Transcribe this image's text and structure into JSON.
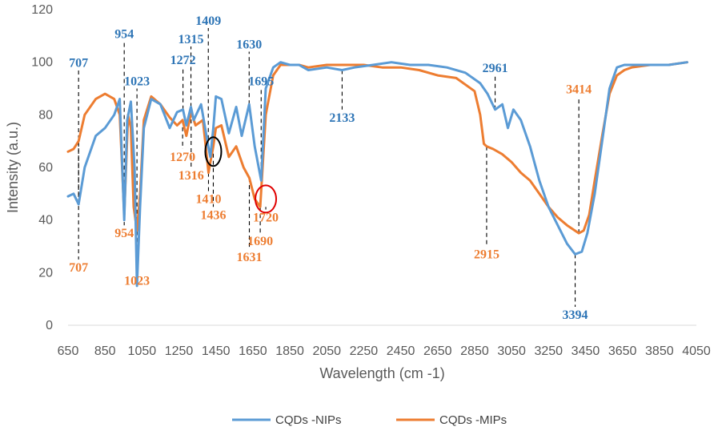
{
  "chart_data": {
    "type": "line",
    "xlabel": "Wavelength (cm -1)",
    "ylabel": "Intensity (a.u.)",
    "xlim": [
      650,
      4050
    ],
    "ylim": [
      0,
      120
    ],
    "grid": false,
    "legend_position": "bottom",
    "x_ticks": [
      650,
      850,
      1050,
      1250,
      1450,
      1650,
      1850,
      2050,
      2250,
      2450,
      2650,
      2850,
      3050,
      3250,
      3450,
      3650,
      3850,
      4050
    ],
    "x_tick_labels": [
      "650",
      "850",
      "1050",
      "1250",
      "1450",
      "1650",
      "1850",
      "2050",
      "2250",
      "2450",
      "2650",
      "2850",
      "3050",
      "3250",
      "3450",
      "3650",
      "3850",
      "4050"
    ],
    "y_ticks": [
      0,
      20,
      40,
      60,
      80,
      100,
      120
    ],
    "y_tick_labels": [
      "0",
      "20",
      "40",
      "60",
      "80",
      "100",
      "120"
    ],
    "colors": {
      "nips": "#5B9BD5",
      "mips": "#ED7D31",
      "nips_label": "#2E75B6",
      "mips_label": "#ED7D31"
    },
    "series": [
      {
        "name": "CQDs -NIPs",
        "x": [
          650,
          680,
          707,
          740,
          800,
          850,
          900,
          930,
          954,
          970,
          990,
          1010,
          1023,
          1040,
          1060,
          1100,
          1150,
          1200,
          1240,
          1272,
          1290,
          1315,
          1330,
          1370,
          1409,
          1420,
          1436,
          1450,
          1480,
          1520,
          1560,
          1590,
          1630,
          1660,
          1695,
          1720,
          1760,
          1800,
          1850,
          1900,
          1950,
          2050,
          2133,
          2200,
          2300,
          2400,
          2500,
          2600,
          2700,
          2800,
          2880,
          2920,
          2961,
          3000,
          3030,
          3060,
          3100,
          3150,
          3200,
          3250,
          3300,
          3350,
          3394,
          3430,
          3460,
          3500,
          3540,
          3580,
          3620,
          3660,
          3700,
          3800,
          3900,
          4000
        ],
        "values": [
          49,
          50,
          46,
          60,
          72,
          75,
          80,
          86,
          40,
          78,
          85,
          60,
          15,
          45,
          75,
          86,
          84,
          75,
          81,
          82,
          76,
          83,
          78,
          84,
          68,
          64,
          75,
          87,
          86,
          73,
          83,
          72,
          84,
          68,
          55,
          90,
          98,
          100,
          99,
          99,
          97,
          98,
          97,
          98,
          99,
          100,
          99,
          99,
          98,
          96,
          92,
          88,
          82,
          84,
          75,
          82,
          78,
          68,
          55,
          45,
          38,
          31,
          27,
          28,
          35,
          50,
          70,
          90,
          98,
          99,
          99,
          99,
          99,
          100
        ]
      },
      {
        "name": "CQDs -MIPs",
        "x": [
          650,
          680,
          707,
          740,
          800,
          850,
          900,
          930,
          954,
          975,
          990,
          1005,
          1023,
          1040,
          1060,
          1100,
          1150,
          1200,
          1240,
          1270,
          1290,
          1316,
          1340,
          1380,
          1410,
          1420,
          1436,
          1450,
          1480,
          1520,
          1560,
          1600,
          1631,
          1660,
          1690,
          1720,
          1760,
          1800,
          1850,
          1900,
          1950,
          2050,
          2150,
          2250,
          2350,
          2450,
          2550,
          2650,
          2750,
          2850,
          2880,
          2900,
          2915,
          2950,
          3000,
          3050,
          3100,
          3150,
          3200,
          3250,
          3300,
          3350,
          3414,
          3440,
          3470,
          3500,
          3540,
          3580,
          3620,
          3660,
          3700,
          3800,
          3900,
          4000
        ],
        "values": [
          66,
          67,
          70,
          80,
          86,
          88,
          86,
          80,
          42,
          80,
          75,
          45,
          36,
          50,
          78,
          87,
          84,
          79,
          76,
          78,
          72,
          81,
          76,
          78,
          58,
          62,
          68,
          75,
          76,
          64,
          68,
          60,
          56,
          48,
          45,
          80,
          95,
          99,
          99,
          99,
          98,
          99,
          99,
          99,
          98,
          98,
          97,
          95,
          94,
          89,
          80,
          69,
          68,
          67,
          65,
          62,
          58,
          55,
          50,
          45,
          41,
          38,
          35,
          36,
          42,
          55,
          72,
          88,
          95,
          97,
          98,
          99,
          99,
          100
        ]
      }
    ],
    "annotations": [
      {
        "text": "707",
        "series": "nips",
        "x": 707,
        "y_from": 46,
        "y_to": 97
      },
      {
        "text": "954",
        "series": "nips",
        "x": 954,
        "y_from": 40,
        "y_to": 108
      },
      {
        "text": "1023",
        "series": "nips",
        "x": 1023,
        "y_from": 15,
        "y_to": 90
      },
      {
        "text": "1272",
        "series": "nips",
        "x": 1272,
        "y_from": 82,
        "y_to": 98
      },
      {
        "text": "1315",
        "series": "nips",
        "x": 1315,
        "y_from": 83,
        "y_to": 106
      },
      {
        "text": "1409",
        "series": "nips",
        "x": 1409,
        "y_from": 68,
        "y_to": 113
      },
      {
        "text": "1630",
        "series": "nips",
        "x": 1630,
        "y_from": 84,
        "y_to": 104
      },
      {
        "text": "1695",
        "series": "nips",
        "x": 1695,
        "y_from": 55,
        "y_to": 90
      },
      {
        "text": "2133",
        "series": "nips",
        "x": 2133,
        "y_from": 97,
        "y_to": 82
      },
      {
        "text": "2961",
        "series": "nips",
        "x": 2961,
        "y_from": 82,
        "y_to": 95
      },
      {
        "text": "3394",
        "series": "nips",
        "x": 3394,
        "y_from": 27,
        "y_to": 7
      },
      {
        "text": "707",
        "series": "mips",
        "x": 707,
        "y_from": 70,
        "y_to": 25
      },
      {
        "text": "954",
        "series": "mips",
        "x": 954,
        "y_from": 42,
        "y_to": 38
      },
      {
        "text": "1023",
        "series": "mips",
        "x": 1023,
        "y_from": 36,
        "y_to": 20
      },
      {
        "text": "1270",
        "series": "mips",
        "x": 1270,
        "y_from": 78,
        "y_to": 67
      },
      {
        "text": "1316",
        "series": "mips",
        "x": 1316,
        "y_from": 81,
        "y_to": 60
      },
      {
        "text": "1410",
        "series": "mips",
        "x": 1410,
        "y_from": 58,
        "y_to": 51
      },
      {
        "text": "1436",
        "series": "mips",
        "x": 1436,
        "y_from": 68,
        "y_to": 45
      },
      {
        "text": "1631",
        "series": "mips",
        "x": 1631,
        "y_from": 56,
        "y_to": 29
      },
      {
        "text": "1690",
        "series": "mips",
        "x": 1690,
        "y_from": 45,
        "y_to": 35
      },
      {
        "text": "1720",
        "series": "mips",
        "x": 1720,
        "y_from": 45,
        "y_to": 44
      },
      {
        "text": "2915",
        "series": "mips",
        "x": 2915,
        "y_from": 68,
        "y_to": 30
      },
      {
        "text": "3414",
        "series": "mips",
        "x": 3414,
        "y_from": 35,
        "y_to": 87
      }
    ],
    "circles": [
      {
        "color": "#000000",
        "x": 1436,
        "y": 66
      },
      {
        "color": "#E00000",
        "x": 1720,
        "y": 48
      }
    ]
  }
}
